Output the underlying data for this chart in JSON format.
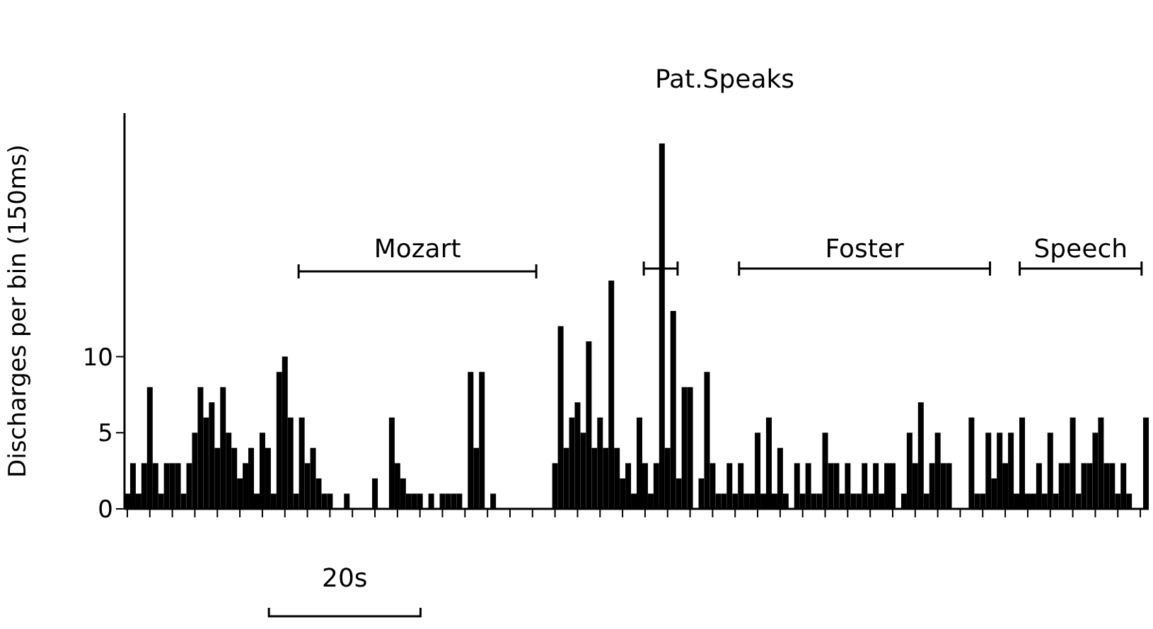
{
  "chart_data": {
    "type": "bar",
    "ylabel": "Discharges per bin  (150ms)",
    "categories": [
      null,
      null,
      null,
      null,
      null,
      null,
      null,
      null,
      null,
      null,
      null,
      null,
      null,
      null,
      null,
      null,
      null,
      null,
      null,
      null,
      null,
      null,
      null,
      null,
      null,
      null,
      null,
      null,
      null,
      null,
      null,
      null,
      null,
      null,
      null,
      null,
      null,
      null,
      null,
      null,
      null,
      null,
      null,
      null,
      null,
      null,
      null,
      null,
      null,
      null,
      null,
      null,
      null,
      null,
      null,
      null,
      null,
      null,
      null,
      null,
      null,
      null,
      null,
      null,
      null,
      null,
      null,
      null,
      null,
      null,
      null,
      null,
      null,
      null,
      null,
      null,
      null,
      null,
      null,
      null,
      null,
      null,
      null,
      null,
      null,
      null,
      null,
      null,
      null,
      null,
      null,
      null,
      null,
      null,
      null,
      null,
      null,
      null,
      null,
      null,
      null,
      null,
      null,
      null,
      null,
      null,
      null,
      null,
      null,
      null,
      null,
      null,
      null,
      null,
      null,
      null,
      null,
      null,
      null,
      null,
      null,
      null,
      null,
      null,
      null,
      null,
      null,
      null,
      null,
      null,
      null,
      null,
      null,
      null,
      null,
      null,
      null,
      null,
      null,
      null,
      null,
      null,
      null,
      null,
      null,
      null,
      null,
      null,
      null,
      null,
      null,
      null,
      null,
      null,
      null,
      null,
      null,
      null,
      null,
      null,
      null,
      null,
      null,
      null,
      null,
      null,
      null,
      null,
      null,
      null,
      null,
      null,
      null,
      null,
      null,
      null,
      null,
      null,
      null,
      null,
      null,
      null
    ],
    "values": [
      1,
      3,
      1,
      3,
      8,
      3,
      1,
      3,
      3,
      3,
      1,
      3,
      5,
      8,
      6,
      7,
      4,
      8,
      5,
      4,
      2,
      3,
      4,
      1,
      5,
      4,
      1,
      9,
      10,
      6,
      1,
      6,
      3,
      4,
      2,
      1,
      1,
      0,
      0,
      1,
      0,
      0,
      0,
      0,
      2,
      0,
      0,
      6,
      3,
      2,
      1,
      1,
      1,
      0,
      1,
      0,
      1,
      1,
      1,
      1,
      0,
      9,
      4,
      9,
      0,
      1,
      0,
      0,
      0,
      0,
      0,
      0,
      0,
      0,
      0,
      0,
      3,
      12,
      4,
      6,
      7,
      5,
      11,
      4,
      6,
      4,
      15,
      4,
      2,
      3,
      1,
      6,
      3,
      1,
      3,
      24,
      4,
      13,
      2,
      8,
      8,
      0,
      2,
      9,
      3,
      1,
      1,
      3,
      1,
      3,
      1,
      1,
      5,
      1,
      6,
      1,
      4,
      1,
      0,
      3,
      1,
      3,
      1,
      1,
      5,
      3,
      3,
      1,
      3,
      1,
      1,
      3,
      1,
      3,
      1,
      3,
      3,
      0,
      1,
      5,
      3,
      7,
      1,
      3,
      5,
      3,
      3,
      0,
      0,
      0,
      6,
      1,
      1,
      5,
      2,
      5,
      3,
      5,
      1,
      6,
      1,
      1,
      3,
      1,
      5,
      1,
      3,
      3,
      6,
      1,
      3,
      3,
      5,
      6,
      3,
      3,
      1,
      3,
      1,
      0,
      0,
      6
    ],
    "color": "#000000",
    "ylim": [
      0,
      26
    ],
    "yticks": [
      0,
      5,
      10
    ],
    "tick_labels": "y",
    "annotations": [
      "Mozart",
      "Pat.Speaks",
      "Foster",
      "Speech",
      "20s"
    ]
  }
}
